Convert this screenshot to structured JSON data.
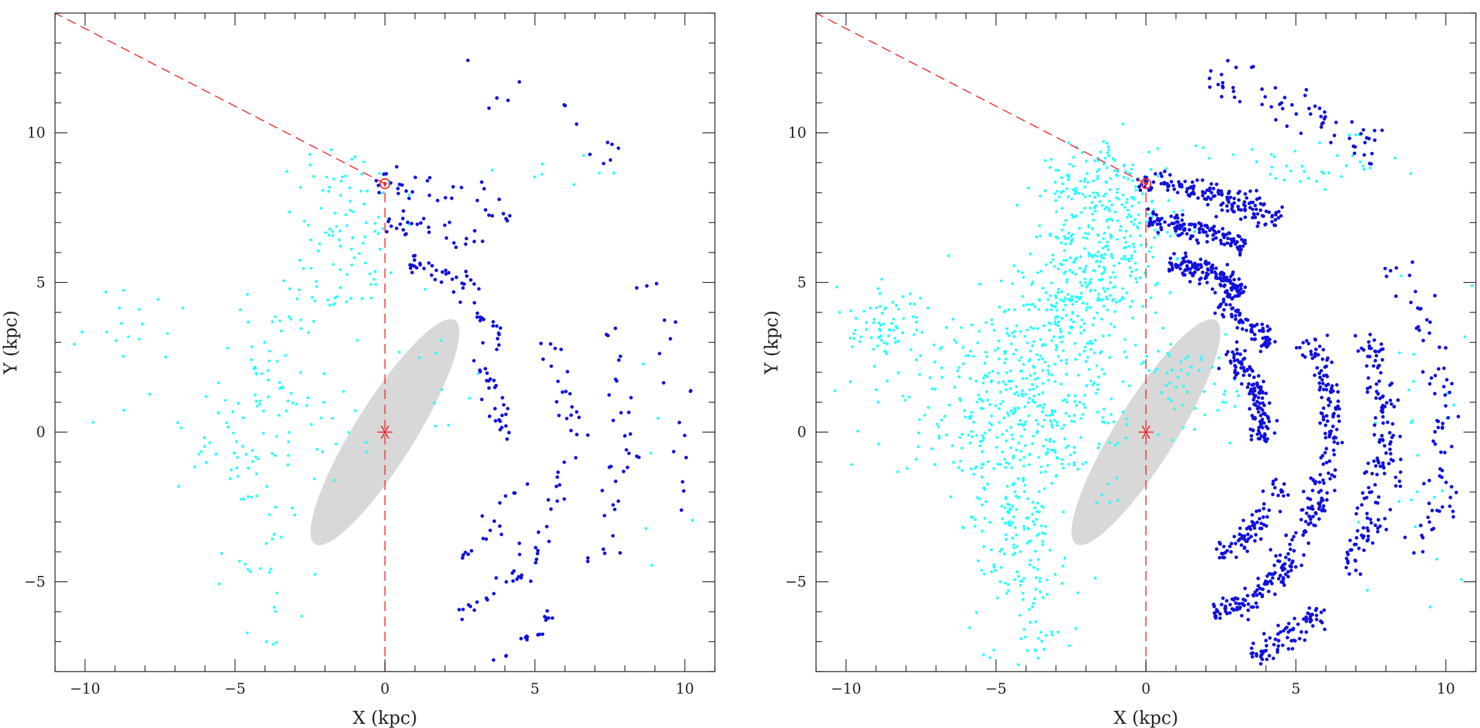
{
  "chart_data": [
    {
      "type": "scatter",
      "panel": "left",
      "title": "",
      "xlabel": "X (kpc)",
      "ylabel": "Y (kpc)",
      "xlim": [
        -11,
        11
      ],
      "ylim": [
        -8,
        14
      ],
      "x_ticks": [
        -10,
        -5,
        0,
        5,
        10
      ],
      "y_ticks": [
        -5,
        0,
        5,
        10
      ],
      "x_tick_labels": [
        "−10",
        "−5",
        "0",
        "5",
        "10"
      ],
      "y_tick_labels": [
        "−5",
        "0",
        "5",
        "10"
      ],
      "grid": false,
      "colors": {
        "cyan": "#22ffff",
        "blue": "#1111dd",
        "bar": "#d8d8d8",
        "markers": "#ee2222"
      },
      "galactic_center": [
        0,
        0
      ],
      "sun": [
        0,
        8.3
      ],
      "bar": {
        "center": [
          0,
          0
        ],
        "semi_major_kpc": 4.4,
        "semi_minor_kpc": 1.0,
        "angle_deg_from_x": 58
      },
      "sight_lines": [
        {
          "from": [
            0,
            -8
          ],
          "to": [
            0,
            8.3
          ]
        },
        {
          "from": [
            0,
            8.3
          ],
          "to": [
            -11,
            14
          ]
        }
      ],
      "series": [
        {
          "color": "cyan",
          "density": 0.35,
          "regions": [
            {
              "center": [
                -1.2,
                6.3
              ],
              "spread": [
                1.0,
                1.2
              ],
              "weight": 18
            },
            {
              "center": [
                -2.5,
                4.5
              ],
              "spread": [
                1.0,
                1.0
              ],
              "weight": 12
            },
            {
              "center": [
                -3.8,
                2.0
              ],
              "spread": [
                1.1,
                1.4
              ],
              "weight": 12
            },
            {
              "center": [
                -4.7,
                0.2
              ],
              "spread": [
                1.2,
                1.4
              ],
              "weight": 10
            },
            {
              "center": [
                -4.4,
                -3.3
              ],
              "spread": [
                0.7,
                1.2
              ],
              "weight": 10
            },
            {
              "center": [
                -8.8,
                3.6
              ],
              "spread": [
                0.6,
                0.6
              ],
              "weight": 5
            },
            {
              "center": [
                -1.8,
                8.3
              ],
              "spread": [
                1.0,
                0.6
              ],
              "weight": 7
            },
            {
              "center": [
                -2.2,
                1.0
              ],
              "spread": [
                1.2,
                1.8
              ],
              "weight": 8
            },
            {
              "center": [
                -6.5,
                0.8
              ],
              "spread": [
                1.4,
                2.0
              ],
              "weight": 7
            },
            {
              "center": [
                1.5,
                1.5
              ],
              "spread": [
                0.8,
                1.2
              ],
              "weight": 4
            },
            {
              "center": [
                -3.5,
                -6.0
              ],
              "spread": [
                0.6,
                1.0
              ],
              "weight": 3
            },
            {
              "center": [
                5.5,
                9.0
              ],
              "spread": [
                1.5,
                0.5
              ],
              "weight": 3
            },
            {
              "center": [
                9.0,
                -0.5
              ],
              "spread": [
                1.0,
                3.0
              ],
              "weight": 2
            }
          ]
        },
        {
          "color": "blue",
          "density": 0.35,
          "regions": [
            {
              "arc": {
                "radius": 8.3,
                "from_deg": 92,
                "to_deg": 58
              },
              "width": 0.25,
              "weight": 12
            },
            {
              "arc": {
                "radius": 7.0,
                "from_deg": 90,
                "to_deg": 62
              },
              "width": 0.2,
              "weight": 10
            },
            {
              "arc": {
                "radius": 5.7,
                "from_deg": 82,
                "to_deg": 55
              },
              "width": 0.2,
              "weight": 12
            },
            {
              "arc": {
                "radius": 5.0,
                "from_deg": 60,
                "to_deg": 35
              },
              "width": 0.2,
              "weight": 6
            },
            {
              "arc": {
                "radius": 3.9,
                "from_deg": 45,
                "to_deg": -5
              },
              "width": 0.2,
              "weight": 10
            },
            {
              "arc": {
                "radius": 6.2,
                "from_deg": 30,
                "to_deg": -45
              },
              "width": 0.25,
              "weight": 14
            },
            {
              "arc": {
                "radius": 8.0,
                "from_deg": 25,
                "to_deg": -35
              },
              "width": 0.3,
              "weight": 12
            },
            {
              "arc": {
                "radius": 10.0,
                "from_deg": 35,
                "to_deg": -25
              },
              "width": 0.3,
              "weight": 6
            },
            {
              "arc": {
                "radius": 4.8,
                "from_deg": -20,
                "to_deg": -60
              },
              "width": 0.2,
              "weight": 6
            },
            {
              "arc": {
                "radius": 6.5,
                "from_deg": -40,
                "to_deg": -70
              },
              "width": 0.2,
              "weight": 8
            },
            {
              "arc": {
                "radius": 8.3,
                "from_deg": -45,
                "to_deg": -65
              },
              "width": 0.2,
              "weight": 6
            },
            {
              "arc": {
                "radius": 12.0,
                "from_deg": 80,
                "to_deg": 50
              },
              "width": 0.4,
              "weight": 5
            }
          ]
        }
      ]
    },
    {
      "type": "scatter",
      "panel": "right",
      "title": "",
      "xlabel": "X (kpc)",
      "ylabel": "Y (kpc)",
      "xlim": [
        -11,
        11
      ],
      "ylim": [
        -8,
        14
      ],
      "x_ticks": [
        -10,
        -5,
        0,
        5,
        10
      ],
      "y_ticks": [
        -5,
        0,
        5,
        10
      ],
      "x_tick_labels": [
        "−10",
        "−5",
        "0",
        "5",
        "10"
      ],
      "y_tick_labels": [
        "−5",
        "0",
        "5",
        "10"
      ],
      "grid": false,
      "colors": {
        "cyan": "#22ffff",
        "blue": "#1111dd",
        "bar": "#d8d8d8",
        "markers": "#ee2222"
      },
      "galactic_center": [
        0,
        0
      ],
      "sun": [
        0,
        8.3
      ],
      "bar": {
        "center": [
          0,
          0
        ],
        "semi_major_kpc": 4.4,
        "semi_minor_kpc": 1.0,
        "angle_deg_from_x": 58
      },
      "sight_lines": [
        {
          "from": [
            0,
            -8
          ],
          "to": [
            0,
            8.3
          ]
        },
        {
          "from": [
            0,
            8.3
          ],
          "to": [
            -11,
            14
          ]
        }
      ],
      "series": [
        {
          "color": "cyan",
          "density": 1.6,
          "regions": [
            {
              "center": [
                -1.2,
                6.3
              ],
              "spread": [
                1.0,
                1.2
              ],
              "weight": 18
            },
            {
              "center": [
                -2.5,
                4.5
              ],
              "spread": [
                1.0,
                1.0
              ],
              "weight": 12
            },
            {
              "center": [
                -3.8,
                2.0
              ],
              "spread": [
                1.1,
                1.4
              ],
              "weight": 12
            },
            {
              "center": [
                -4.7,
                0.2
              ],
              "spread": [
                1.2,
                1.4
              ],
              "weight": 10
            },
            {
              "center": [
                -4.4,
                -3.3
              ],
              "spread": [
                0.7,
                1.2
              ],
              "weight": 10
            },
            {
              "center": [
                -8.8,
                3.6
              ],
              "spread": [
                0.6,
                0.6
              ],
              "weight": 5
            },
            {
              "center": [
                -1.8,
                8.3
              ],
              "spread": [
                1.0,
                0.6
              ],
              "weight": 7
            },
            {
              "center": [
                -2.2,
                1.0
              ],
              "spread": [
                1.2,
                1.8
              ],
              "weight": 8
            },
            {
              "center": [
                -6.5,
                0.8
              ],
              "spread": [
                1.4,
                2.0
              ],
              "weight": 7
            },
            {
              "center": [
                1.5,
                1.5
              ],
              "spread": [
                0.8,
                1.2
              ],
              "weight": 4
            },
            {
              "center": [
                -3.5,
                -6.0
              ],
              "spread": [
                0.6,
                1.0
              ],
              "weight": 3
            },
            {
              "center": [
                5.5,
                9.0
              ],
              "spread": [
                1.5,
                0.5
              ],
              "weight": 3
            },
            {
              "center": [
                9.0,
                -0.5
              ],
              "spread": [
                1.0,
                3.0
              ],
              "weight": 2
            }
          ]
        },
        {
          "color": "blue",
          "density": 1.6,
          "regions": [
            {
              "arc": {
                "radius": 8.3,
                "from_deg": 92,
                "to_deg": 58
              },
              "width": 0.25,
              "weight": 12
            },
            {
              "arc": {
                "radius": 7.0,
                "from_deg": 90,
                "to_deg": 62
              },
              "width": 0.2,
              "weight": 10
            },
            {
              "arc": {
                "radius": 5.7,
                "from_deg": 82,
                "to_deg": 55
              },
              "width": 0.2,
              "weight": 12
            },
            {
              "arc": {
                "radius": 5.0,
                "from_deg": 60,
                "to_deg": 35
              },
              "width": 0.2,
              "weight": 6
            },
            {
              "arc": {
                "radius": 3.9,
                "from_deg": 45,
                "to_deg": -5
              },
              "width": 0.2,
              "weight": 10
            },
            {
              "arc": {
                "radius": 6.2,
                "from_deg": 30,
                "to_deg": -45
              },
              "width": 0.25,
              "weight": 14
            },
            {
              "arc": {
                "radius": 8.0,
                "from_deg": 25,
                "to_deg": -35
              },
              "width": 0.3,
              "weight": 12
            },
            {
              "arc": {
                "radius": 10.0,
                "from_deg": 35,
                "to_deg": -25
              },
              "width": 0.3,
              "weight": 6
            },
            {
              "arc": {
                "radius": 4.8,
                "from_deg": -20,
                "to_deg": -60
              },
              "width": 0.2,
              "weight": 6
            },
            {
              "arc": {
                "radius": 6.5,
                "from_deg": -40,
                "to_deg": -70
              },
              "width": 0.2,
              "weight": 8
            },
            {
              "arc": {
                "radius": 8.3,
                "from_deg": -45,
                "to_deg": -65
              },
              "width": 0.2,
              "weight": 6
            },
            {
              "arc": {
                "radius": 12.0,
                "from_deg": 80,
                "to_deg": 50
              },
              "width": 0.4,
              "weight": 5
            }
          ]
        }
      ]
    }
  ]
}
